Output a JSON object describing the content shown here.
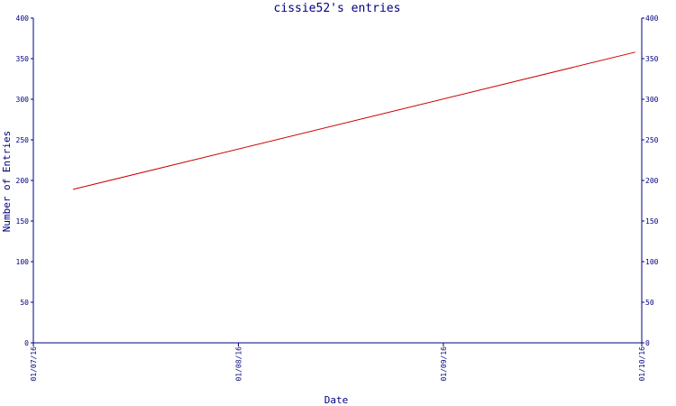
{
  "chart_data": {
    "type": "line",
    "title": "cissie52's entries",
    "xlabel": "Date",
    "ylabel": "Number of Entries",
    "x_ticks": [
      "01/07/16",
      "01/08/16",
      "01/09/16",
      "01/10/16"
    ],
    "ylim": [
      0,
      400
    ],
    "y_ticks": [
      0,
      50,
      100,
      150,
      200,
      250,
      300,
      350,
      400
    ],
    "y_ticks_right": true,
    "grid": false,
    "series": [
      {
        "color": "#cc0000",
        "points": [
          {
            "x": "2016-07-07",
            "y": 189
          },
          {
            "x": "2016-09-30",
            "y": 358
          }
        ]
      }
    ]
  },
  "colors": {
    "axis": "#000080",
    "text": "#000080",
    "line": "#cc0000"
  }
}
